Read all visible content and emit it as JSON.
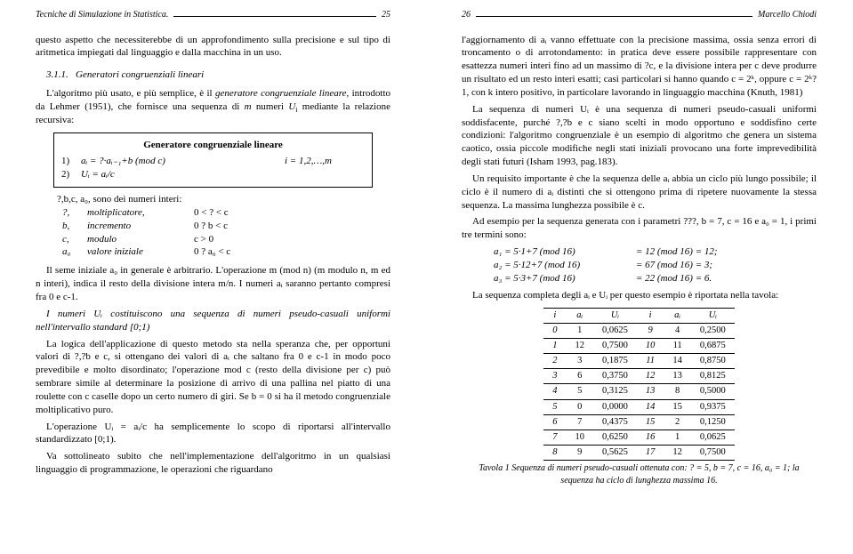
{
  "left": {
    "header_title": "Tecniche di Simulazione in Statistica.",
    "header_page": "25",
    "p1": "questo aspetto che necessiterebbe di un approfondimento sulla precisione e sul tipo di aritmetica impiegati dal linguaggio e dalla macchina in un uso.",
    "sec_num": "3.1.1.",
    "sec_title": "Generatori congruenziali lineari",
    "p2a": "L'algoritmo più usato, e più semplice, è il ",
    "p2b": "generatore congruenziale lineare",
    "p2c": ", introdotto da Lehmer (1951), che fornisce una sequenza di ",
    "p2d": "m",
    "p2e": " numeri ",
    "p2f": "U",
    "p2g": " mediante la relazione recursiva:",
    "box_title": "Generatore congruenziale lineare",
    "box_r1_n": "1)",
    "box_r1_eq": "aᵢ = ?·aᵢ₋₁+b (mod c)",
    "box_r1_rng": "i = 1,2,…,m",
    "box_r2_n": "2)",
    "box_r2_eq": "Uᵢ = aᵢ/c",
    "params_intro": "?,b,c, a₀, sono dei numeri interi:",
    "params": [
      {
        "s": "?,",
        "l": "moltiplicatore,",
        "c": "0 < ? < c"
      },
      {
        "s": "b,",
        "l": "incremento",
        "c": "0 ? b < c"
      },
      {
        "s": "c,",
        "l": "modulo",
        "c": "c > 0"
      },
      {
        "s": "a₀",
        "l": "valore iniziale",
        "c": "0 ? a₀ < c"
      }
    ],
    "p3": "Il seme iniziale a₀ in generale è arbitrario. L'operazione m (mod n) (m modulo n, m ed n interi), indica il resto della divisione intera m/n. I numeri aᵢ saranno pertanto compresi fra 0 e c-1.",
    "p4": "I numeri Uᵢ costituiscono una sequenza di numeri pseudo-casuali uniformi nell'intervallo standard [0;1)",
    "p5": "La logica dell'applicazione di questo metodo sta nella speranza che, per opportuni valori di ?,?b e c, si ottengano dei valori di aᵢ che saltano fra 0 e c-1 in modo poco prevedibile e molto disordinato; l'operazione mod c (resto della divisione per c) può sembrare simile al determinare la posizione di arrivo di una pallina nel piatto di una roulette con c caselle dopo un certo numero di giri. Se b = 0 si ha il metodo congruenziale moltiplicativo puro.",
    "p6": "L'operazione Uᵢ = aᵢ/c ha semplicemente lo scopo di riportarsi all'intervallo standardizzato [0;1).",
    "p7": "Va sottolineato subito che nell'implementazione dell'algoritmo in un qualsiasi linguaggio di programmazione, le operazioni che riguardano"
  },
  "right": {
    "header_page": "26",
    "header_author": "Marcello Chiodi",
    "p1": "l'aggiornamento di aᵢ vanno effettuate con la precisione massima, ossia senza errori di troncamento o di arrotondamento: in pratica deve essere possibile rappresentare con esattezza numeri interi fino ad un massimo di ?c, e la divisione intera per c deve produrre un risultato ed un resto interi esatti; casi particolari si hanno quando c = 2ᵏ, oppure c = 2ᵏ?1, con k intero positivo, in particolare lavorando in linguaggio macchina (Knuth, 1981)",
    "p2": "La sequenza di numeri Uᵢ è una sequenza di numeri pseudo-casuali uniformi soddisfacente, purché ?,?b e c siano scelti in modo opportuno e soddisfino certe condizioni: l'algoritmo congruenziale è un esempio di algoritmo che genera un sistema caotico, ossia piccole modifiche negli stati iniziali provocano una forte imprevedibilità degli stati futuri (Isham 1993, pag.183).",
    "p3": "Un requisito importante è che la sequenza delle aᵢ abbia un ciclo più lungo possibile; il ciclo è il numero di aᵢ distinti che si ottengono prima di ripetere nuovamente la stessa sequenza. La massima lunghezza possibile è c.",
    "p4": "Ad esempio per la sequenza generata con i parametri ???, b = 7, c = 16 e a₀ = 1, i primi tre termini sono:",
    "eq": [
      {
        "a": "a₁ = 5·1+7 (mod 16)",
        "b": "= 12   (mod 16) = 12;"
      },
      {
        "a": "a₂ = 5·12+7 (mod 16)",
        "b": "= 67   (mod 16) = 3;"
      },
      {
        "a": "a₃ = 5·3+7 (mod 16)",
        "b": "= 22   (mod 16) = 6."
      }
    ],
    "p5": "La sequenza completa degli aᵢ e Uᵢ per questo esempio è riportata nella tavola:",
    "table": {
      "head": [
        "i",
        "aᵢ",
        "Uᵢ",
        "i",
        "aᵢ",
        "Uᵢ"
      ],
      "rows": [
        [
          "0",
          "1",
          "0,0625",
          "9",
          "4",
          "0,2500"
        ],
        [
          "1",
          "12",
          "0,7500",
          "10",
          "11",
          "0,6875"
        ],
        [
          "2",
          "3",
          "0,1875",
          "11",
          "14",
          "0,8750"
        ],
        [
          "3",
          "6",
          "0,3750",
          "12",
          "13",
          "0,8125"
        ],
        [
          "4",
          "5",
          "0,3125",
          "13",
          "8",
          "0,5000"
        ],
        [
          "5",
          "0",
          "0,0000",
          "14",
          "15",
          "0,9375"
        ],
        [
          "6",
          "7",
          "0,4375",
          "15",
          "2",
          "0,1250"
        ],
        [
          "7",
          "10",
          "0,6250",
          "16",
          "1",
          "0,0625"
        ],
        [
          "8",
          "9",
          "0,5625",
          "17",
          "12",
          "0,7500"
        ]
      ]
    },
    "caption": "Tavola 1 Sequenza di numeri pseudo-casuali ottenuta con: ? = 5, b = 7, c = 16, a₀ = 1; la sequenza ha ciclo di lunghezza massima 16."
  }
}
